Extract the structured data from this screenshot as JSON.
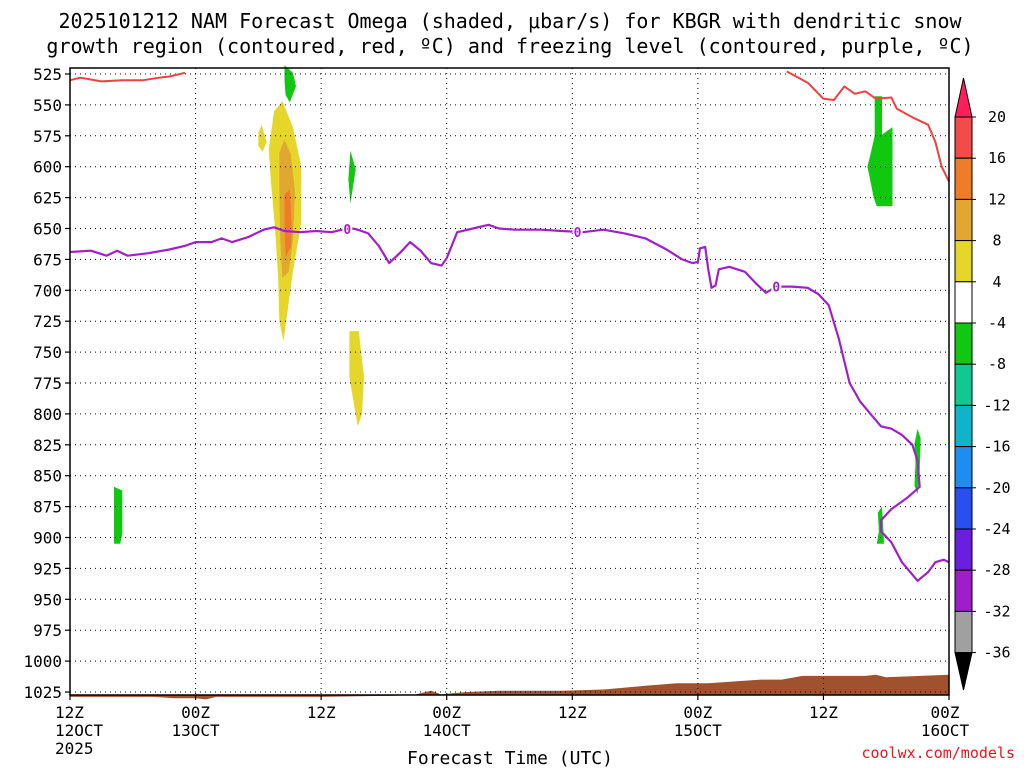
{
  "chart_data": {
    "type": "time-height cross section",
    "title_line1": "2025101212 NAM Forecast Omega (shaded, μbar/s) for KBGR with dendritic snow",
    "title_line2": "growth region (contoured, red, ºC) and freezing level (contoured, purple, ºC)",
    "xlabel": "Forecast Time (UTC)",
    "credit": "coolwx.com/models",
    "y_pressure_range_mb": [
      525,
      1033
    ],
    "y_ticks": [
      525,
      550,
      575,
      600,
      625,
      650,
      675,
      700,
      725,
      750,
      775,
      800,
      825,
      850,
      875,
      900,
      925,
      950,
      975,
      1000,
      1025
    ],
    "x_range_hours": [
      0,
      84
    ],
    "x_ticks": [
      {
        "hour": 0,
        "line1": "12Z",
        "line2": "12OCT",
        "line3": "2025"
      },
      {
        "hour": 12,
        "line1": "00Z",
        "line2": "13OCT",
        "line3": ""
      },
      {
        "hour": 24,
        "line1": "12Z",
        "line2": "",
        "line3": ""
      },
      {
        "hour": 36,
        "line1": "00Z",
        "line2": "14OCT",
        "line3": ""
      },
      {
        "hour": 48,
        "line1": "12Z",
        "line2": "",
        "line3": ""
      },
      {
        "hour": 60,
        "line1": "00Z",
        "line2": "15OCT",
        "line3": ""
      },
      {
        "hour": 72,
        "line1": "12Z",
        "line2": "",
        "line3": ""
      },
      {
        "hour": 84,
        "line1": "00Z",
        "line2": "16OCT",
        "line3": ""
      }
    ],
    "colorbar": {
      "labels": [
        "20",
        "16",
        "12",
        "8",
        "4",
        "-4",
        "-8",
        "-12",
        "-16",
        "-20",
        "-24",
        "-28",
        "-32",
        "-36"
      ],
      "bins": [
        {
          "color": "#ff1e5a",
          "from": 20,
          "to": 24
        },
        {
          "color": "#f34a4a",
          "from": 16,
          "to": 20
        },
        {
          "color": "#f07c28",
          "from": 12,
          "to": 16
        },
        {
          "color": "#e0a830",
          "from": 8,
          "to": 12
        },
        {
          "color": "#e6d62a",
          "from": 4,
          "to": 8
        },
        {
          "color": "#ffffff",
          "from": -4,
          "to": 4
        },
        {
          "color": "#10c810",
          "from": -8,
          "to": -4
        },
        {
          "color": "#10c890",
          "from": -12,
          "to": -8
        },
        {
          "color": "#10b4c8",
          "from": -16,
          "to": -12
        },
        {
          "color": "#1e8cf0",
          "from": -20,
          "to": -16
        },
        {
          "color": "#2850f0",
          "from": -24,
          "to": -20
        },
        {
          "color": "#6a1ee0",
          "from": -28,
          "to": -24
        },
        {
          "color": "#a01ec8",
          "from": -32,
          "to": -28
        },
        {
          "color": "#a0a0a0",
          "from": -36,
          "to": -32
        },
        {
          "color": "#000000",
          "from": -40,
          "to": -36
        }
      ]
    },
    "dgz_contour_red": {
      "color": "#f04040",
      "segments": [
        [
          [
            0,
            530
          ],
          [
            1,
            528
          ],
          [
            3,
            531
          ],
          [
            5,
            530
          ],
          [
            7,
            530
          ],
          [
            8.5,
            528
          ],
          [
            9.5,
            527
          ],
          [
            11,
            524
          ]
        ],
        [
          [
            68.5,
            523
          ],
          [
            70.5,
            532
          ],
          [
            72,
            545
          ],
          [
            73,
            546
          ],
          [
            74,
            535
          ],
          [
            75,
            541
          ],
          [
            76,
            539
          ],
          [
            77,
            545
          ],
          [
            78.5,
            544
          ],
          [
            79,
            553
          ],
          [
            80.5,
            560
          ],
          [
            82,
            566
          ],
          [
            82.7,
            580
          ],
          [
            83.3,
            600
          ],
          [
            84,
            612
          ]
        ]
      ]
    },
    "freezing_level_purple": {
      "color": "#a020c8",
      "label": "0",
      "label_hours": [
        26.5,
        48.5,
        67.5
      ],
      "points": [
        [
          0,
          669
        ],
        [
          2,
          668
        ],
        [
          3.5,
          672
        ],
        [
          4.5,
          668
        ],
        [
          5.5,
          672
        ],
        [
          7.5,
          670
        ],
        [
          9.5,
          667
        ],
        [
          11,
          664
        ],
        [
          12,
          661
        ],
        [
          13.5,
          661
        ],
        [
          14.5,
          658
        ],
        [
          15.5,
          661
        ],
        [
          17,
          657
        ],
        [
          18.5,
          651
        ],
        [
          19.5,
          649
        ],
        [
          20.5,
          652
        ],
        [
          22,
          653
        ],
        [
          23.5,
          652
        ],
        [
          25,
          653
        ],
        [
          26,
          651
        ],
        [
          27,
          650
        ],
        [
          27.5,
          651
        ],
        [
          28.5,
          654
        ],
        [
          29.5,
          664
        ],
        [
          30.5,
          678
        ],
        [
          31.5,
          670
        ],
        [
          32.5,
          661
        ],
        [
          33.5,
          668
        ],
        [
          34.5,
          678
        ],
        [
          35.5,
          680
        ],
        [
          36,
          674
        ],
        [
          37,
          653
        ],
        [
          38.5,
          650
        ],
        [
          40,
          647
        ],
        [
          41,
          650
        ],
        [
          42.5,
          651
        ],
        [
          45,
          651
        ],
        [
          47,
          652
        ],
        [
          49,
          653
        ],
        [
          51,
          651
        ],
        [
          53,
          654
        ],
        [
          55,
          658
        ],
        [
          57,
          667
        ],
        [
          58.5,
          675
        ],
        [
          59.5,
          678
        ],
        [
          60,
          677
        ],
        [
          60.2,
          666
        ],
        [
          60.7,
          665
        ],
        [
          61,
          683
        ],
        [
          61.3,
          698
        ],
        [
          61.7,
          696
        ],
        [
          62,
          683
        ],
        [
          63,
          681
        ],
        [
          64.5,
          685
        ],
        [
          65.5,
          694
        ],
        [
          66.5,
          702
        ],
        [
          67.5,
          697
        ],
        [
          69,
          697
        ],
        [
          70.5,
          698
        ],
        [
          71.5,
          703
        ],
        [
          72.5,
          712
        ],
        [
          73.5,
          740
        ],
        [
          74.5,
          775
        ],
        [
          75.5,
          790
        ],
        [
          76.5,
          800
        ],
        [
          77.5,
          810
        ],
        [
          78.5,
          812
        ],
        [
          79.5,
          817
        ],
        [
          80.5,
          825
        ],
        [
          81,
          838
        ],
        [
          81.2,
          859
        ],
        [
          80,
          868
        ],
        [
          78.5,
          877
        ],
        [
          77.5,
          886
        ],
        [
          77.5,
          895
        ],
        [
          78.5,
          904
        ],
        [
          79.5,
          920
        ],
        [
          81,
          935
        ],
        [
          82,
          928
        ],
        [
          82.7,
          920
        ],
        [
          83.5,
          918
        ],
        [
          84,
          920
        ]
      ]
    },
    "omega_regions": [
      {
        "color": "#10c810",
        "points": [
          [
            4.2,
            859
          ],
          [
            5,
            862
          ],
          [
            5,
            897
          ],
          [
            4.8,
            905
          ],
          [
            4.2,
            905
          ]
        ]
      },
      {
        "color": "#10c810",
        "points": [
          [
            20.5,
            518
          ],
          [
            21.3,
            524
          ],
          [
            21.6,
            535
          ],
          [
            21,
            548
          ],
          [
            20.6,
            542
          ],
          [
            20.5,
            530
          ]
        ]
      },
      {
        "color": "#e6d62a",
        "points": [
          [
            18,
            573
          ],
          [
            18.3,
            566
          ],
          [
            18.8,
            580
          ],
          [
            18.4,
            588
          ],
          [
            18,
            583
          ]
        ]
      },
      {
        "color": "#e6d62a",
        "points": [
          [
            19.5,
            555
          ],
          [
            20.3,
            547
          ],
          [
            21.3,
            568
          ],
          [
            22.1,
            600
          ],
          [
            22.1,
            645
          ],
          [
            21.3,
            685
          ],
          [
            20.4,
            741
          ],
          [
            20,
            725
          ],
          [
            19.9,
            690
          ],
          [
            19.6,
            650
          ],
          [
            19.2,
            612
          ],
          [
            19,
            586
          ]
        ]
      },
      {
        "color": "#e0a830",
        "points": [
          [
            20,
            589
          ],
          [
            20.5,
            578
          ],
          [
            21.1,
            590
          ],
          [
            21.5,
            620
          ],
          [
            21.3,
            660
          ],
          [
            20.9,
            685
          ],
          [
            20.3,
            690
          ],
          [
            20.1,
            660
          ],
          [
            20,
            620
          ]
        ]
      },
      {
        "color": "#f07c28",
        "points": [
          [
            20.5,
            623
          ],
          [
            21,
            618
          ],
          [
            21.2,
            650
          ],
          [
            21.1,
            665
          ],
          [
            20.6,
            673
          ],
          [
            20.5,
            650
          ]
        ]
      },
      {
        "color": "#10c810",
        "points": [
          [
            26.8,
            587
          ],
          [
            27.3,
            602
          ],
          [
            26.8,
            630
          ],
          [
            26.6,
            610
          ]
        ]
      },
      {
        "color": "#e6d62a",
        "points": [
          [
            26.7,
            733
          ],
          [
            27.6,
            733
          ],
          [
            28.1,
            770
          ],
          [
            27.9,
            800
          ],
          [
            27.5,
            810
          ],
          [
            27.2,
            795
          ],
          [
            26.7,
            770
          ]
        ]
      },
      {
        "color": "#10c810",
        "points": [
          [
            76.9,
            543
          ],
          [
            77.6,
            543
          ],
          [
            77.6,
            574
          ],
          [
            78.6,
            568
          ],
          [
            78.6,
            632
          ],
          [
            77.1,
            632
          ],
          [
            76.8,
            625
          ],
          [
            76.4,
            608
          ],
          [
            76.2,
            600
          ],
          [
            76.5,
            590
          ],
          [
            76.9,
            575
          ]
        ]
      },
      {
        "color": "#10c810",
        "points": [
          [
            80.7,
            824
          ],
          [
            81,
            812
          ],
          [
            81.3,
            820
          ],
          [
            81.2,
            845
          ],
          [
            81,
            865
          ],
          [
            80.7,
            858
          ],
          [
            80.8,
            840
          ]
        ]
      },
      {
        "color": "#10c810",
        "points": [
          [
            77.2,
            880
          ],
          [
            77.6,
            875
          ],
          [
            77.7,
            890
          ],
          [
            77.8,
            905
          ],
          [
            77.1,
            905
          ],
          [
            77.3,
            895
          ]
        ]
      }
    ],
    "terrain": {
      "color": "#a0522d",
      "surface_points": [
        [
          0,
          1029
        ],
        [
          4,
          1029
        ],
        [
          8,
          1029
        ],
        [
          10,
          1030
        ],
        [
          12,
          1030
        ],
        [
          13,
          1031
        ],
        [
          14,
          1029
        ],
        [
          18,
          1029
        ],
        [
          24,
          1029
        ],
        [
          31,
          1028
        ],
        [
          33,
          1027
        ],
        [
          34.5,
          1024
        ],
        [
          35.5,
          1027
        ],
        [
          36.5,
          1026
        ],
        [
          38,
          1025
        ],
        [
          41,
          1024
        ],
        [
          47,
          1024
        ],
        [
          51,
          1023
        ],
        [
          55,
          1020
        ],
        [
          58,
          1018
        ],
        [
          61,
          1018
        ],
        [
          66,
          1015
        ],
        [
          68,
          1015
        ],
        [
          70,
          1012
        ],
        [
          76,
          1012
        ],
        [
          77,
          1011
        ],
        [
          78,
          1013
        ],
        [
          84,
          1011
        ]
      ]
    }
  }
}
